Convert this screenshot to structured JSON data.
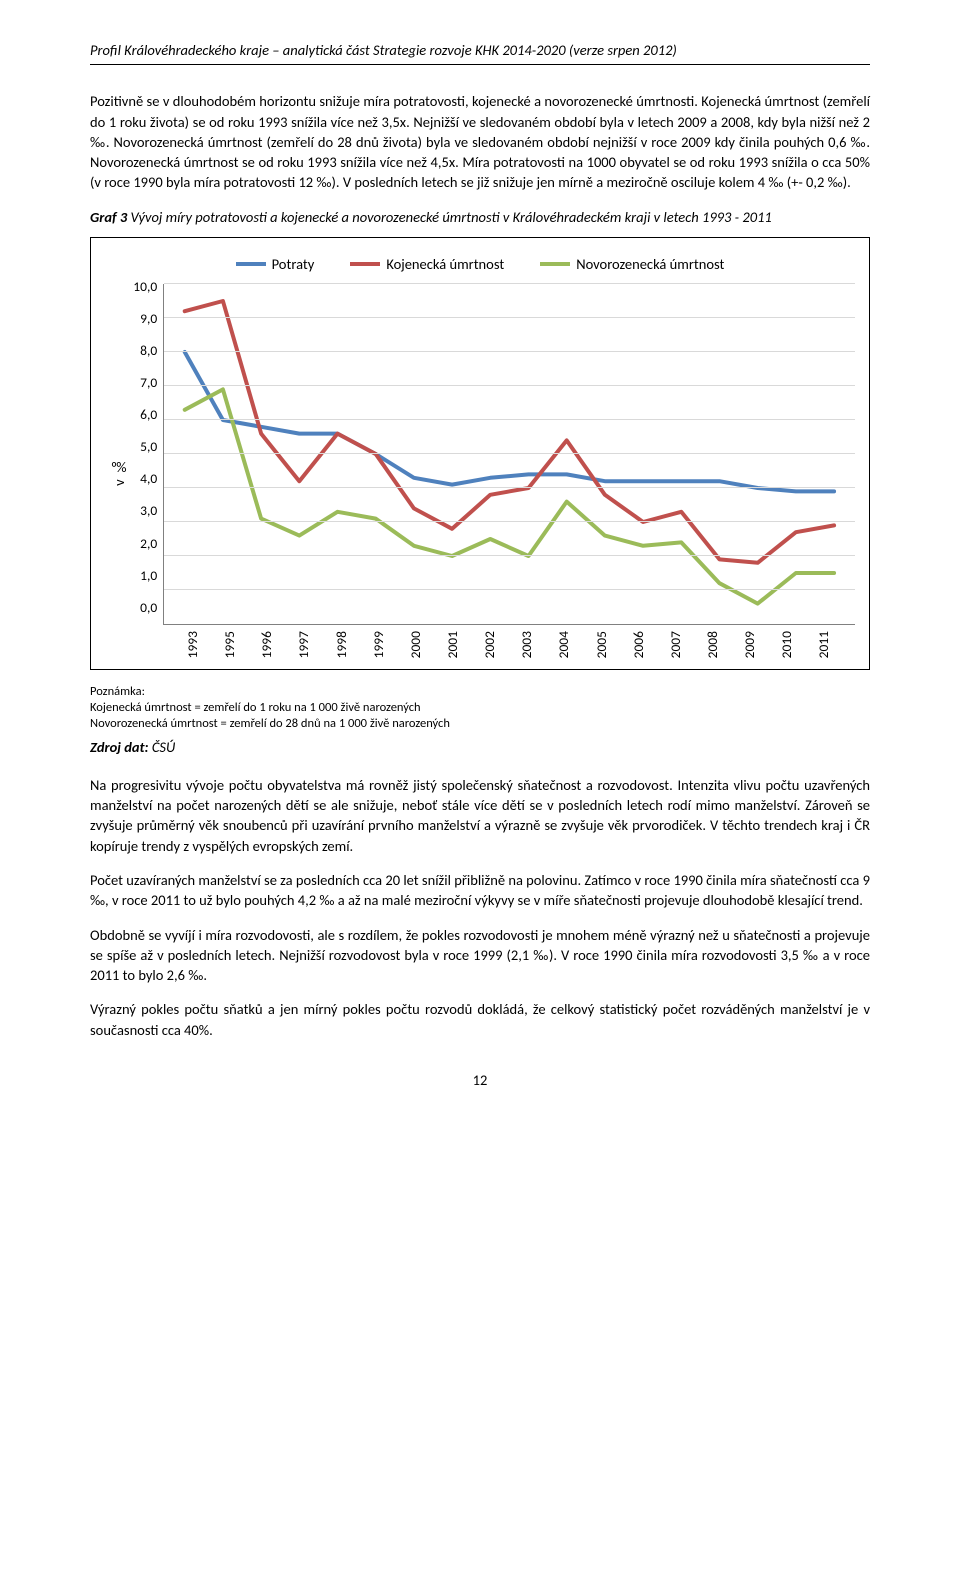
{
  "header": "Profil Královéhradeckého kraje – analytická část Strategie rozvoje KHK 2014-2020 (verze srpen 2012)",
  "para1": "Pozitivně se v dlouhodobém horizontu snižuje míra potratovosti, kojenecké a novorozenecké úmrtnosti.  Kojenecká úmrtnost (zemřelí do 1 roku života) se od roku 1993 snížila více než 3,5x. Nejnižší ve sledovaném období byla v letech 2009 a 2008, kdy byla nižší než 2 ‰. Novorozenecká úmrtnost (zemřelí do 28 dnů života) byla ve sledovaném období nejnižší v roce 2009 kdy činila pouhých 0,6 ‰. Novorozenecká úmrtnost se od roku 1993 snížila více než 4,5x. Míra potratovosti na 1000 obyvatel se od roku 1993 snížila o cca 50% (v roce 1990 byla míra potratovosti 12 ‰). V posledních letech se již snižuje jen mírně a meziročně osciluje kolem 4 ‰ (+- 0,2 ‰).",
  "caption_lead": "Graf 3 ",
  "caption_rest": "Vývoj míry potratovosti a kojenecké a novorozenecké úmrtnosti v Královéhradeckém kraji v letech 1993 - 2011",
  "chart": {
    "type": "line",
    "ylabel": "v ‰",
    "ylim": [
      0,
      10
    ],
    "ytick_step": 1,
    "yticks": [
      "10,0",
      "9,0",
      "8,0",
      "7,0",
      "6,0",
      "5,0",
      "4,0",
      "3,0",
      "2,0",
      "1,0",
      "0,0"
    ],
    "years": [
      "1993",
      "1995",
      "1996",
      "1997",
      "1998",
      "1999",
      "2000",
      "2001",
      "2002",
      "2003",
      "2004",
      "2005",
      "2006",
      "2007",
      "2008",
      "2009",
      "2010",
      "2011"
    ],
    "grid_color": "#d9d9d9",
    "axis_color": "#808080",
    "line_width": 4,
    "series": [
      {
        "name": "Potraty",
        "color": "#4f81bd",
        "values": [
          8.0,
          6.0,
          5.8,
          5.6,
          5.6,
          5.0,
          4.3,
          4.1,
          4.3,
          4.4,
          4.4,
          4.2,
          4.2,
          4.2,
          4.2,
          4.0,
          3.9,
          3.9
        ]
      },
      {
        "name": "Kojenecká úmrtnost",
        "color": "#c0504d",
        "values": [
          9.2,
          9.5,
          5.6,
          4.2,
          5.6,
          5.0,
          3.4,
          2.8,
          3.8,
          4.0,
          5.4,
          3.8,
          3.0,
          3.3,
          1.9,
          1.8,
          2.7,
          2.9
        ]
      },
      {
        "name": "Novorozenecká úmrtnost",
        "color": "#9bbb59",
        "values": [
          6.3,
          6.9,
          3.1,
          2.6,
          3.3,
          3.1,
          2.3,
          2.0,
          2.5,
          2.0,
          3.6,
          2.6,
          2.3,
          2.4,
          1.2,
          0.6,
          1.5,
          1.5
        ]
      }
    ]
  },
  "note_title": "Poznámka:",
  "note_line1": "Kojenecká úmrtnost = zemřelí do 1 roku na 1 000 živě narozených",
  "note_line2": "Novorozenecká úmrtnost = zemřelí do 28 dnů na 1 000 živě narozených",
  "source_label": "Zdroj dat: ",
  "source_value": "ČSÚ",
  "para2": "Na progresivitu vývoje počtu obyvatelstva má rovněž jistý společenský sňatečnost a rozvodovost. Intenzita vlivu počtu uzavřených manželství na počet narozených dětí se ale snižuje, neboť stále více dětí se v posledních letech rodí mimo manželství. Zároveň se zvyšuje průměrný věk snoubenců při uzavírání prvního manželství a výrazně se zvyšuje věk prvorodiček. V těchto trendech kraj i ČR kopíruje trendy z vyspělých evropských zemí.",
  "para3": "Počet uzavíraných manželství se za posledních cca 20 let snížil přibližně na polovinu. Zatímco v roce 1990 činila míra sňatečností cca 9 ‰, v roce 2011 to už bylo pouhých 4,2 ‰ a až na malé meziroční výkyvy se v míře sňatečnosti projevuje dlouhodobě klesající trend.",
  "para4": "Obdobně se vyvíjí i míra rozvodovosti, ale s rozdílem, že pokles rozvodovosti je mnohem méně výrazný než u sňatečnosti a projevuje se spíše až v posledních letech. Nejnižší rozvodovost byla v roce 1999 (2,1 ‰). V roce 1990 činila míra rozvodovosti 3,5 ‰ a v roce 2011 to bylo 2,6 ‰.",
  "para5": "Výrazný pokles počtu sňatků a jen mírný pokles počtu rozvodů dokládá, že celkový statistický počet rozváděných manželství je v současnosti cca 40%.",
  "page": "12"
}
